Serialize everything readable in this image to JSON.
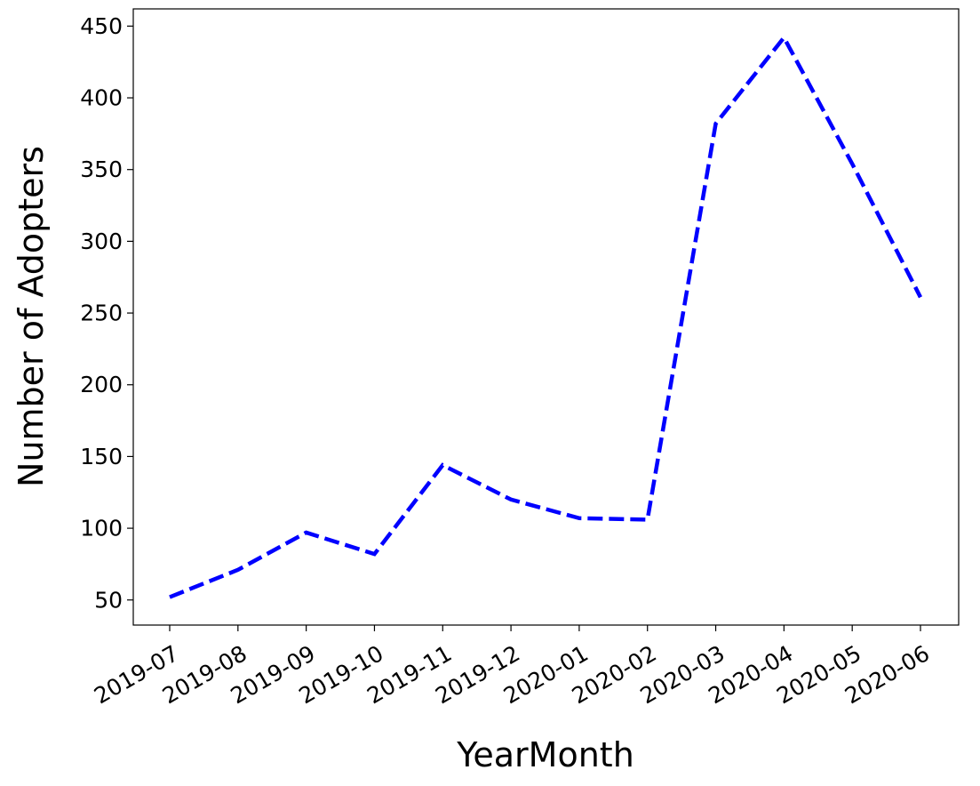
{
  "chart_data": {
    "type": "line",
    "title": "",
    "xlabel": "YearMonth",
    "ylabel": "Number of Adopters",
    "categories": [
      "2019-07",
      "2019-08",
      "2019-09",
      "2019-10",
      "2019-11",
      "2019-12",
      "2020-01",
      "2020-02",
      "2020-03",
      "2020-04",
      "2020-05",
      "2020-06"
    ],
    "series": [
      {
        "values": [
          52,
          71,
          97,
          82,
          144,
          120,
          107,
          106,
          382,
          442,
          354,
          261
        ],
        "color": "#0000ff",
        "line_style": "dashed"
      }
    ],
    "yticks": [
      50,
      100,
      150,
      200,
      250,
      300,
      350,
      400,
      450
    ],
    "ylim": [
      32.5,
      462
    ],
    "xtick_rotation": "30 degrees",
    "grid": false,
    "legend": "none"
  }
}
